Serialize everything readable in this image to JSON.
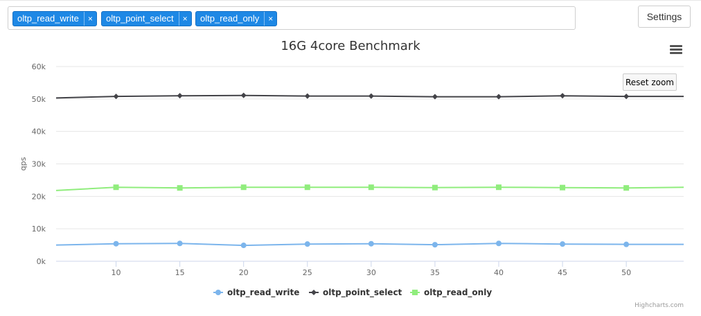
{
  "tags": [
    {
      "label": "oltp_read_write",
      "remove": "×"
    },
    {
      "label": "oltp_point_select",
      "remove": "×"
    },
    {
      "label": "oltp_read_only",
      "remove": "×"
    }
  ],
  "settings_label": "Settings",
  "reset_zoom_label": "Reset zoom",
  "credits": "Highcharts.com",
  "colors": {
    "read_write": "#7cb5ec",
    "point_select": "#434348",
    "read_only": "#90ed7d",
    "tag": "#1e88e5"
  },
  "chart_data": {
    "type": "line",
    "title": "16G 4core Benchmark",
    "ylabel": "qps",
    "xlabel": "",
    "xlim": [
      5.3,
      54.5
    ],
    "ylim": [
      0,
      60000
    ],
    "x_ticks": [
      10,
      15,
      20,
      25,
      30,
      35,
      40,
      45,
      50
    ],
    "y_ticks": [
      {
        "value": 0,
        "label": "0k"
      },
      {
        "value": 10000,
        "label": "10k"
      },
      {
        "value": 20000,
        "label": "20k"
      },
      {
        "value": 30000,
        "label": "30k"
      },
      {
        "value": 40000,
        "label": "40k"
      },
      {
        "value": 50000,
        "label": "50k"
      },
      {
        "value": 60000,
        "label": "60k"
      }
    ],
    "grid": true,
    "legend_position": "bottom-center",
    "series": [
      {
        "name": "oltp_read_write",
        "marker": "circle",
        "x": [
          5.3,
          10,
          15,
          20,
          25,
          30,
          35,
          40,
          45,
          50,
          54.5
        ],
        "y": [
          5000,
          5400,
          5500,
          4900,
          5300,
          5400,
          5100,
          5500,
          5300,
          5200,
          5200
        ]
      },
      {
        "name": "oltp_point_select",
        "marker": "diamond",
        "x": [
          5.3,
          10,
          15,
          20,
          25,
          30,
          35,
          40,
          45,
          50,
          54.5
        ],
        "y": [
          50300,
          50800,
          51000,
          51100,
          50900,
          50900,
          50700,
          50700,
          51000,
          50800,
          50800
        ]
      },
      {
        "name": "oltp_read_only",
        "marker": "square",
        "x": [
          5.3,
          10,
          15,
          20,
          25,
          30,
          35,
          40,
          45,
          50,
          54.5
        ],
        "y": [
          21800,
          22800,
          22600,
          22800,
          22800,
          22800,
          22700,
          22800,
          22700,
          22600,
          22800
        ]
      }
    ]
  }
}
